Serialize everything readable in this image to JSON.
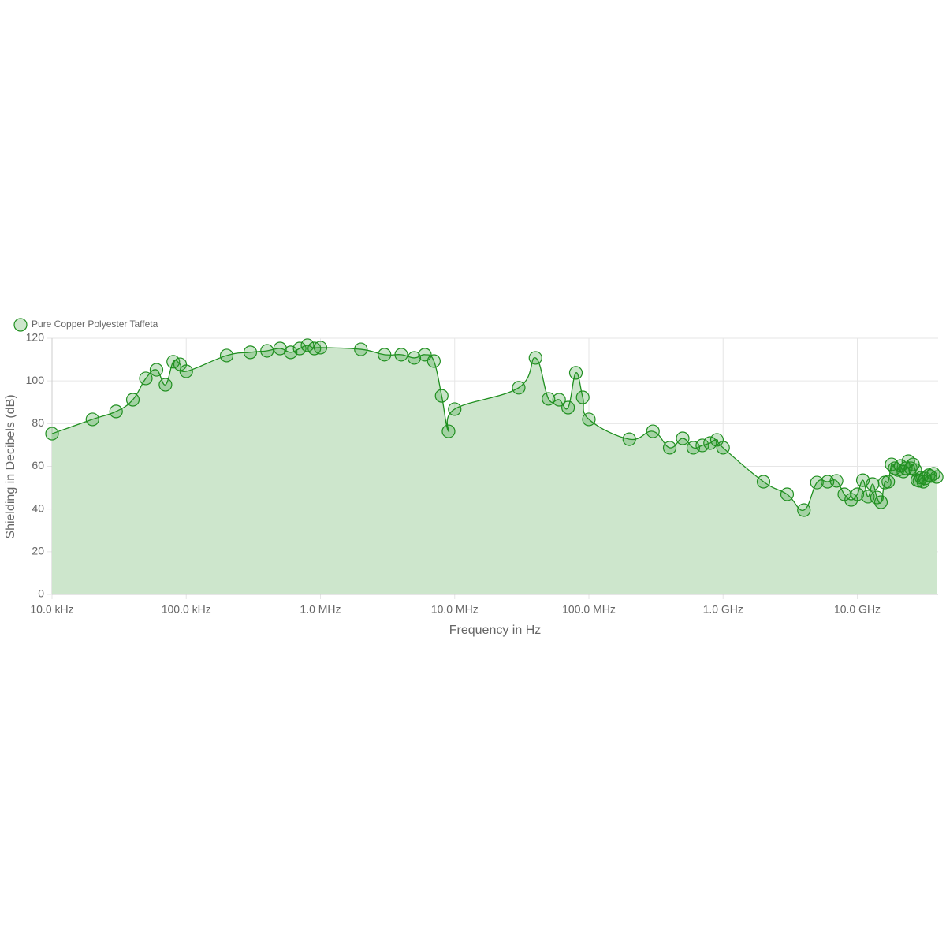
{
  "chart_data": {
    "type": "area-line",
    "legend_position": "top-left",
    "x_label": "Frequency in Hz",
    "y_label": "Shielding in Decibels (dB)",
    "x_scale": "log",
    "grid": true,
    "xlim": [
      10000,
      40000000000
    ],
    "ylim": [
      0,
      120
    ],
    "xticks": [
      {
        "value": 10000,
        "label": "10.0 kHz"
      },
      {
        "value": 100000,
        "label": "100.0 kHz"
      },
      {
        "value": 1000000,
        "label": "1.0 MHz"
      },
      {
        "value": 10000000,
        "label": "10.0 MHz"
      },
      {
        "value": 100000000,
        "label": "100.0 MHz"
      },
      {
        "value": 1000000000,
        "label": "1.0 GHz"
      },
      {
        "value": 10000000000,
        "label": "10.0 GHz"
      }
    ],
    "yticks": [
      0,
      20,
      40,
      60,
      80,
      100,
      120
    ],
    "series": [
      {
        "name": "Pure Copper Polyester Taffeta",
        "color": "#1f8f1f",
        "fill": "#cde6cc",
        "x": [
          10000,
          20000,
          30000,
          40000,
          50000,
          60000,
          70000,
          80000,
          90000,
          100000,
          200000,
          300000,
          400000,
          500000,
          600000,
          700000,
          800000,
          900000,
          1000000,
          2000000,
          3000000,
          4000000,
          5000000,
          6000000,
          7000000,
          8000000,
          9000000,
          10000000,
          30000000,
          40000000,
          50000000,
          60000000,
          70000000,
          80000000,
          90000000,
          100000000,
          200000000,
          300000000,
          400000000,
          500000000,
          600000000,
          700000000,
          800000000,
          900000000,
          1000000000,
          2000000000,
          3000000000,
          4000000000,
          5000000000,
          6000000000,
          7000000000,
          8000000000,
          9000000000,
          10000000000,
          11000000000,
          12000000000,
          13000000000,
          14000000000,
          15000000000,
          16000000000,
          17000000000,
          18000000000,
          19000000000,
          20000000000,
          21000000000,
          22000000000,
          23000000000,
          24000000000,
          25000000000,
          26000000000,
          27000000000,
          28000000000,
          29000000000,
          30000000000,
          31000000000,
          32000000000,
          34000000000,
          35000000000,
          37000000000,
          39000000000
        ],
        "values": [
          75.3,
          82,
          85.7,
          91.2,
          101.2,
          105.2,
          98.2,
          109,
          107.8,
          104.5,
          111.9,
          113.4,
          114.1,
          115.2,
          113.4,
          115.2,
          116.7,
          115.2,
          115.6,
          114.8,
          112.3,
          112.3,
          110.8,
          112.3,
          109.3,
          93,
          76.4,
          86.8,
          96.8,
          110.8,
          91.6,
          91.2,
          87.5,
          103.8,
          92.3,
          82,
          72.7,
          76.4,
          68.7,
          73.1,
          68.7,
          69.8,
          70.9,
          72.4,
          68.7,
          52.8,
          46.9,
          39.5,
          52.4,
          52.8,
          53.2,
          46.9,
          44.3,
          46.9,
          53.5,
          45.8,
          51.7,
          45.4,
          43.2,
          52.4,
          52.8,
          60.9,
          59.1,
          58.3,
          60.2,
          57.6,
          59.1,
          62.4,
          59.1,
          60.9,
          58.3,
          53.5,
          53.2,
          54.7,
          52.8,
          54.3,
          55.8,
          55.4,
          56.5,
          55
        ]
      }
    ]
  }
}
